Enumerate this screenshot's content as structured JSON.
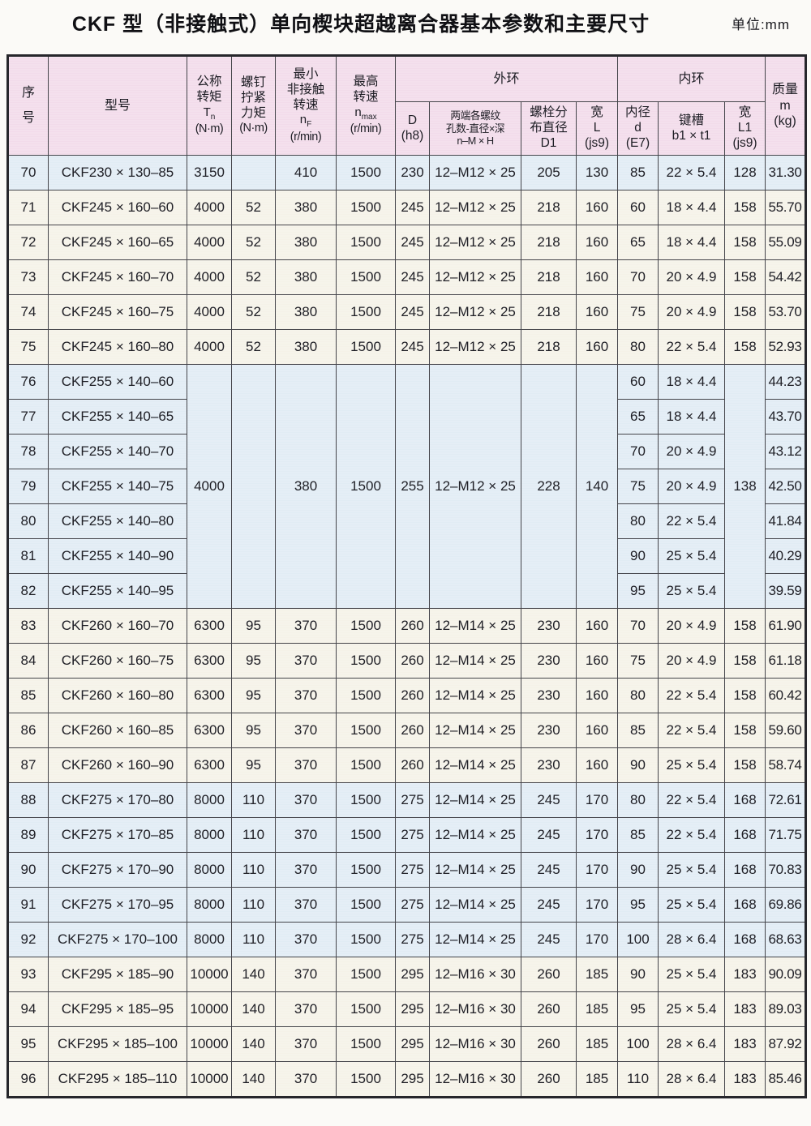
{
  "title": "CKF 型（非接触式）单向楔块超越离合器基本参数和主要尺寸",
  "unit_label": "单位:mm",
  "header": {
    "no_lines": [
      "序",
      "号"
    ],
    "model": "型号",
    "tn": {
      "lines": [
        "公称",
        "转矩"
      ],
      "sym_base": "T",
      "sym_sub": "n",
      "unit": "(N·m)"
    },
    "screw": {
      "lines": [
        "螺钉",
        "拧紧",
        "力矩"
      ],
      "unit": "(N·m)"
    },
    "nf": {
      "lines": [
        "最小",
        "非接触",
        "转速"
      ],
      "sym_base": "n",
      "sym_sub": "F",
      "unit": "(r/min)"
    },
    "nmax": {
      "lines": [
        "最高",
        "转速"
      ],
      "sym_base": "n",
      "sym_sub": "max",
      "unit": "(r/min)"
    },
    "outer_ring": "外环",
    "inner_ring": "内环",
    "d_lines": [
      "D",
      "(h8)"
    ],
    "thread_lines": [
      "两端各螺纹",
      "孔数-直径×深",
      "n–M × H"
    ],
    "d1_lines": [
      "螺栓分",
      "布直径",
      "D1"
    ],
    "l_lines": [
      "宽",
      "L",
      "(js9)"
    ],
    "bore_lines": [
      "内径",
      "d",
      "(E7)"
    ],
    "keyway_lines": [
      "键槽",
      "b1 × t1"
    ],
    "l1_lines": [
      "宽",
      "L1",
      "(js9)"
    ],
    "mass_lines": [
      "质量",
      "m",
      "(kg)"
    ]
  },
  "table": {
    "column_keys": [
      "no",
      "model",
      "tn",
      "screw",
      "nf",
      "nmax",
      "d",
      "thread",
      "d1",
      "l",
      "bore",
      "keyway",
      "l1",
      "mass"
    ],
    "rows": [
      {
        "shade": "blue",
        "cells": [
          "70",
          "CKF230 × 130–85",
          "3150",
          "",
          "410",
          "1500",
          "230",
          "12–M12 × 25",
          "205",
          "130",
          "85",
          "22 × 5.4",
          "128",
          "31.30"
        ]
      },
      {
        "shade": "cream",
        "cells": [
          "71",
          "CKF245 × 160–60",
          "4000",
          "52",
          "380",
          "1500",
          "245",
          "12–M12 × 25",
          "218",
          "160",
          "60",
          "18 × 4.4",
          "158",
          "55.70"
        ]
      },
      {
        "shade": "cream",
        "cells": [
          "72",
          "CKF245 × 160–65",
          "4000",
          "52",
          "380",
          "1500",
          "245",
          "12–M12 × 25",
          "218",
          "160",
          "65",
          "18 × 4.4",
          "158",
          "55.09"
        ]
      },
      {
        "shade": "cream",
        "cells": [
          "73",
          "CKF245 × 160–70",
          "4000",
          "52",
          "380",
          "1500",
          "245",
          "12–M12 × 25",
          "218",
          "160",
          "70",
          "20 × 4.9",
          "158",
          "54.42"
        ]
      },
      {
        "shade": "cream",
        "cells": [
          "74",
          "CKF245 × 160–75",
          "4000",
          "52",
          "380",
          "1500",
          "245",
          "12–M12 × 25",
          "218",
          "160",
          "75",
          "20 × 4.9",
          "158",
          "53.70"
        ]
      },
      {
        "shade": "cream",
        "cells": [
          "75",
          "CKF245 × 160–80",
          "4000",
          "52",
          "380",
          "1500",
          "245",
          "12–M12 × 25",
          "218",
          "160",
          "80",
          "22 × 5.4",
          "158",
          "52.93"
        ]
      },
      {
        "shade": "blue",
        "cells": [
          "76",
          "CKF255 × 140–60",
          {
            "v": "4000",
            "rs": 7
          },
          {
            "v": "",
            "rs": 7
          },
          {
            "v": "380",
            "rs": 7
          },
          {
            "v": "1500",
            "rs": 7
          },
          {
            "v": "255",
            "rs": 7
          },
          {
            "v": "12–M12 × 25",
            "rs": 7
          },
          {
            "v": "228",
            "rs": 7
          },
          {
            "v": "140",
            "rs": 7
          },
          "60",
          "18 × 4.4",
          {
            "v": "138",
            "rs": 7
          },
          "44.23"
        ]
      },
      {
        "shade": "blue",
        "cells": [
          "77",
          "CKF255 × 140–65",
          null,
          null,
          null,
          null,
          null,
          null,
          null,
          null,
          "65",
          "18 × 4.4",
          null,
          "43.70"
        ]
      },
      {
        "shade": "blue",
        "cells": [
          "78",
          "CKF255 × 140–70",
          null,
          null,
          null,
          null,
          null,
          null,
          null,
          null,
          "70",
          "20 × 4.9",
          null,
          "43.12"
        ]
      },
      {
        "shade": "blue",
        "cells": [
          "79",
          "CKF255 × 140–75",
          null,
          null,
          null,
          null,
          null,
          null,
          null,
          null,
          "75",
          "20 × 4.9",
          null,
          "42.50"
        ]
      },
      {
        "shade": "blue",
        "cells": [
          "80",
          "CKF255 × 140–80",
          null,
          null,
          null,
          null,
          null,
          null,
          null,
          null,
          "80",
          "22 × 5.4",
          null,
          "41.84"
        ]
      },
      {
        "shade": "blue",
        "cells": [
          "81",
          "CKF255 × 140–90",
          null,
          null,
          null,
          null,
          null,
          null,
          null,
          null,
          "90",
          "25 × 5.4",
          null,
          "40.29"
        ]
      },
      {
        "shade": "blue",
        "cells": [
          "82",
          "CKF255 × 140–95",
          null,
          null,
          null,
          null,
          null,
          null,
          null,
          null,
          "95",
          "25 × 5.4",
          null,
          "39.59"
        ]
      },
      {
        "shade": "cream",
        "cells": [
          "83",
          "CKF260 × 160–70",
          "6300",
          "95",
          "370",
          "1500",
          "260",
          "12–M14 × 25",
          "230",
          "160",
          "70",
          "20 × 4.9",
          "158",
          "61.90"
        ]
      },
      {
        "shade": "cream",
        "cells": [
          "84",
          "CKF260 × 160–75",
          "6300",
          "95",
          "370",
          "1500",
          "260",
          "12–M14 × 25",
          "230",
          "160",
          "75",
          "20 × 4.9",
          "158",
          "61.18"
        ]
      },
      {
        "shade": "cream",
        "cells": [
          "85",
          "CKF260 × 160–80",
          "6300",
          "95",
          "370",
          "1500",
          "260",
          "12–M14 × 25",
          "230",
          "160",
          "80",
          "22 × 5.4",
          "158",
          "60.42"
        ]
      },
      {
        "shade": "cream",
        "cells": [
          "86",
          "CKF260 × 160–85",
          "6300",
          "95",
          "370",
          "1500",
          "260",
          "12–M14 × 25",
          "230",
          "160",
          "85",
          "22 × 5.4",
          "158",
          "59.60"
        ]
      },
      {
        "shade": "cream",
        "cells": [
          "87",
          "CKF260 × 160–90",
          "6300",
          "95",
          "370",
          "1500",
          "260",
          "12–M14 × 25",
          "230",
          "160",
          "90",
          "25 × 5.4",
          "158",
          "58.74"
        ]
      },
      {
        "shade": "blue",
        "cells": [
          "88",
          "CKF275 × 170–80",
          "8000",
          "110",
          "370",
          "1500",
          "275",
          "12–M14 × 25",
          "245",
          "170",
          "80",
          "22 × 5.4",
          "168",
          "72.61"
        ]
      },
      {
        "shade": "blue",
        "cells": [
          "89",
          "CKF275 × 170–85",
          "8000",
          "110",
          "370",
          "1500",
          "275",
          "12–M14 × 25",
          "245",
          "170",
          "85",
          "22 × 5.4",
          "168",
          "71.75"
        ]
      },
      {
        "shade": "blue",
        "cells": [
          "90",
          "CKF275 × 170–90",
          "8000",
          "110",
          "370",
          "1500",
          "275",
          "12–M14 × 25",
          "245",
          "170",
          "90",
          "25 × 5.4",
          "168",
          "70.83"
        ]
      },
      {
        "shade": "blue",
        "cells": [
          "91",
          "CKF275 × 170–95",
          "8000",
          "110",
          "370",
          "1500",
          "275",
          "12–M14 × 25",
          "245",
          "170",
          "95",
          "25 × 5.4",
          "168",
          "69.86"
        ]
      },
      {
        "shade": "blue",
        "cells": [
          "92",
          "CKF275 × 170–100",
          "8000",
          "110",
          "370",
          "1500",
          "275",
          "12–M14 × 25",
          "245",
          "170",
          "100",
          "28 × 6.4",
          "168",
          "68.63"
        ]
      },
      {
        "shade": "cream",
        "cells": [
          "93",
          "CKF295 × 185–90",
          "10000",
          "140",
          "370",
          "1500",
          "295",
          "12–M16 × 30",
          "260",
          "185",
          "90",
          "25 × 5.4",
          "183",
          "90.09"
        ]
      },
      {
        "shade": "cream",
        "cells": [
          "94",
          "CKF295 × 185–95",
          "10000",
          "140",
          "370",
          "1500",
          "295",
          "12–M16 × 30",
          "260",
          "185",
          "95",
          "25 × 5.4",
          "183",
          "89.03"
        ]
      },
      {
        "shade": "cream",
        "cells": [
          "95",
          "CKF295 × 185–100",
          "10000",
          "140",
          "370",
          "1500",
          "295",
          "12–M16 × 30",
          "260",
          "185",
          "100",
          "28 × 6.4",
          "183",
          "87.92"
        ]
      },
      {
        "shade": "cream",
        "cells": [
          "96",
          "CKF295 × 185–110",
          "10000",
          "140",
          "370",
          "1500",
          "295",
          "12–M16 × 30",
          "260",
          "185",
          "110",
          "28 × 6.4",
          "183",
          "85.46"
        ]
      }
    ]
  }
}
